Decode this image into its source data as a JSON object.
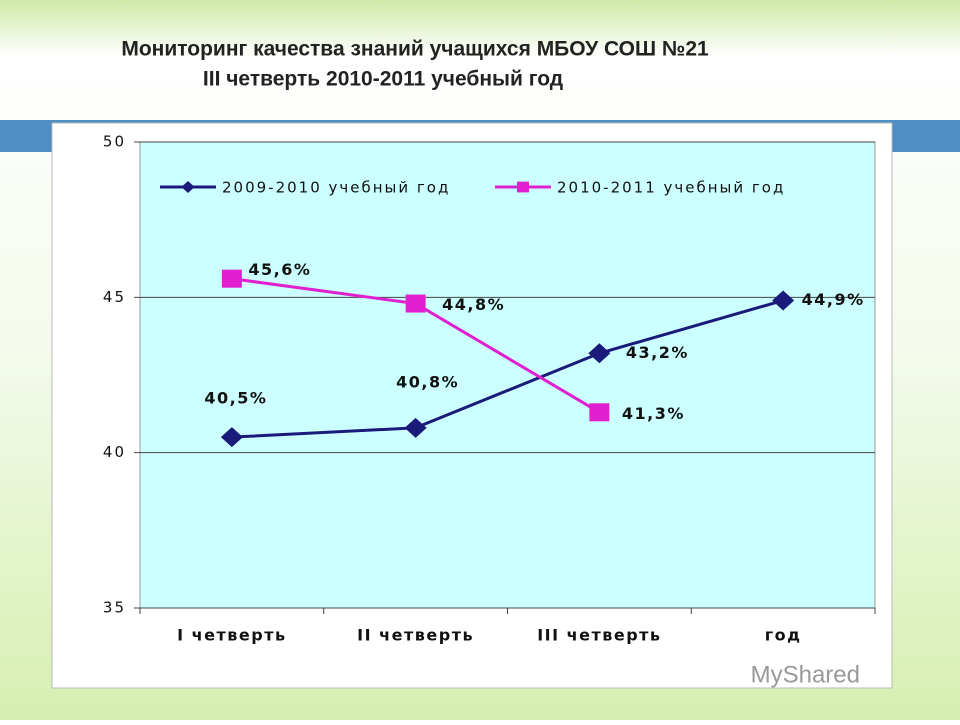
{
  "chart_data": {
    "type": "line",
    "title": "Мониторинг качества знаний учащихся МБОУ СОШ №21",
    "subtitle": "III четверть 2010-2011 учебный год",
    "categories": [
      "I четверть",
      "II четверть",
      "III четверть",
      "год"
    ],
    "series": [
      {
        "name": "2009-2010 учебный год",
        "color": "#1a1a7a",
        "marker": "diamond",
        "values": [
          40.5,
          40.8,
          43.2,
          44.9
        ],
        "value_labels": [
          "40,5%",
          "40,8%",
          "43,2%",
          "44,9%"
        ]
      },
      {
        "name": "2010-2011 учебный год",
        "color": "#e020d0",
        "marker": "square",
        "values": [
          45.6,
          44.8,
          41.3,
          null
        ],
        "value_labels": [
          "45,6%",
          "44,8%",
          "41,3%",
          null
        ]
      }
    ],
    "ylim": [
      35,
      50
    ],
    "yticks": [
      35,
      40,
      45,
      50
    ],
    "grid": true,
    "legend": "top",
    "watermark": "MyShared"
  }
}
